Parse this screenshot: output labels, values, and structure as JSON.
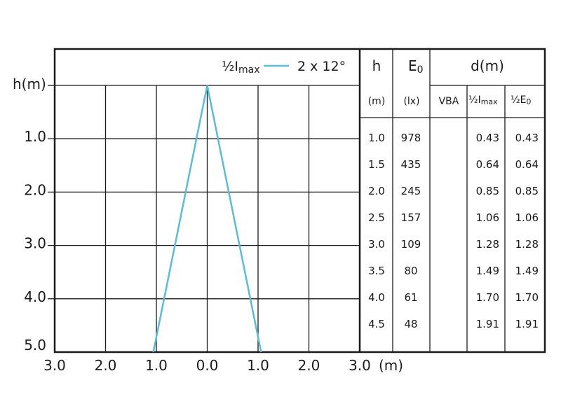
{
  "chart_data": {
    "type": "line",
    "legend": {
      "label_prefix": "½I",
      "label_sub": "max",
      "beam_text": "2 x 12°",
      "color": "#5bbcd6",
      "placement": "top"
    },
    "xlabel": "(m)",
    "ylabel": "h(m)",
    "xlim": [
      -3,
      3
    ],
    "ylim": [
      0,
      5.0
    ],
    "x_ticks": [
      {
        "value": -3,
        "label": "3.0"
      },
      {
        "value": -2,
        "label": "2.0"
      },
      {
        "value": -1,
        "label": "1.0"
      },
      {
        "value": 0,
        "label": "0.0"
      },
      {
        "value": 1,
        "label": "1.0"
      },
      {
        "value": 2,
        "label": "2.0"
      },
      {
        "value": 3,
        "label": "3.0"
      }
    ],
    "y_ticks": [
      {
        "value": 1.0,
        "label": "1.0"
      },
      {
        "value": 2.0,
        "label": "2.0"
      },
      {
        "value": 3.0,
        "label": "3.0"
      },
      {
        "value": 4.0,
        "label": "4.0"
      },
      {
        "value": 5.0,
        "label": "5.0"
      }
    ],
    "grid": true,
    "series": [
      {
        "points": [
          [
            0,
            0
          ],
          [
            -1.06,
            5.0
          ]
        ]
      },
      {
        "points": [
          [
            0,
            0
          ],
          [
            1.06,
            5.0
          ]
        ]
      }
    ],
    "table": {
      "headers": {
        "h": "h",
        "e0": {
          "main": "E",
          "sub": "0"
        },
        "d": "d(m)"
      },
      "subheaders": {
        "h": "(m)",
        "e0": "(lx)",
        "vba": "VBA",
        "half_imax": {
          "main": "½I",
          "sub": "max"
        },
        "half_e0": {
          "main": "½E",
          "sub": "0"
        }
      },
      "rows": [
        {
          "h": "1.0",
          "e0": "978",
          "vba": "",
          "half_imax": "0.43",
          "half_e0": "0.43"
        },
        {
          "h": "1.5",
          "e0": "435",
          "vba": "",
          "half_imax": "0.64",
          "half_e0": "0.64"
        },
        {
          "h": "2.0",
          "e0": "245",
          "vba": "",
          "half_imax": "0.85",
          "half_e0": "0.85"
        },
        {
          "h": "2.5",
          "e0": "157",
          "vba": "",
          "half_imax": "1.06",
          "half_e0": "1.06"
        },
        {
          "h": "3.0",
          "e0": "109",
          "vba": "",
          "half_imax": "1.28",
          "half_e0": "1.28"
        },
        {
          "h": "3.5",
          "e0": "80",
          "vba": "",
          "half_imax": "1.49",
          "half_e0": "1.49"
        },
        {
          "h": "4.0",
          "e0": "61",
          "vba": "",
          "half_imax": "1.70",
          "half_e0": "1.70"
        },
        {
          "h": "4.5",
          "e0": "48",
          "vba": "",
          "half_imax": "1.91",
          "half_e0": "1.91"
        }
      ]
    }
  }
}
